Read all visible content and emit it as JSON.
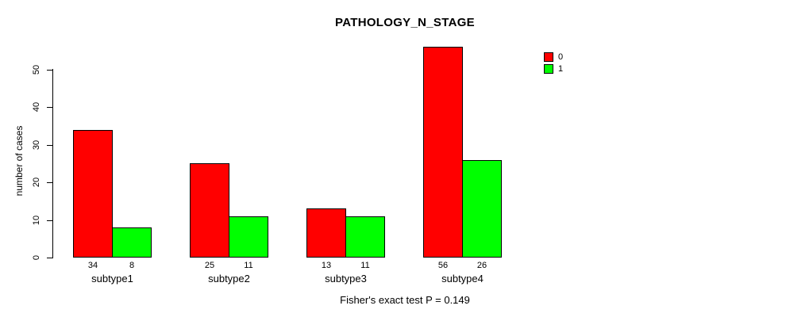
{
  "title": "PATHOLOGY_N_STAGE",
  "annotation": "Fisher's exact test P = 0.149",
  "colors": {
    "series0": "#ff0000",
    "series1": "#00ff00",
    "axis": "#000000",
    "background": "#ffffff"
  },
  "chart_data": {
    "type": "bar",
    "title": "PATHOLOGY_N_STAGE",
    "categories": [
      "subtype1",
      "subtype2",
      "subtype3",
      "subtype4"
    ],
    "series": [
      {
        "name": "0",
        "color": "#ff0000",
        "values": [
          34,
          25,
          13,
          56
        ]
      },
      {
        "name": "1",
        "color": "#00ff00",
        "values": [
          8,
          11,
          11,
          26
        ]
      }
    ],
    "bar_value_labels": [
      [
        34,
        25,
        13,
        56
      ],
      [
        8,
        11,
        11,
        26
      ]
    ],
    "xlabel": "",
    "ylabel": "number of cases",
    "yticks": [
      0,
      10,
      20,
      30,
      40,
      50
    ],
    "ylim": [
      0,
      57
    ],
    "grid": false,
    "grouped": true,
    "legend_position": "top-right",
    "legend_entries": [
      "0",
      "1"
    ],
    "annotation": "Fisher's exact test P = 0.149"
  }
}
